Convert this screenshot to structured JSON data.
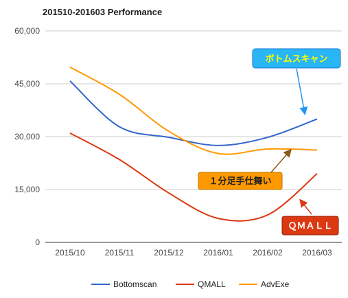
{
  "chart_data": {
    "type": "line",
    "title": "201510-201603 Performance",
    "categories": [
      "2015/10",
      "2015/11",
      "2015/12",
      "2016/01",
      "2016/02",
      "2016/03"
    ],
    "ylim": [
      0,
      60000
    ],
    "yticks": [
      0,
      15000,
      30000,
      45000,
      60000
    ],
    "ytick_labels": [
      "0",
      "15,000",
      "30,000",
      "45,000",
      "60,000"
    ],
    "xlabel": "",
    "ylabel": "",
    "grid": true,
    "legend_position": "bottom",
    "series": [
      {
        "name": "Bottomscan",
        "color": "#3366cc",
        "values": [
          45800,
          32800,
          29800,
          27500,
          29800,
          35000
        ]
      },
      {
        "name": "QMALL",
        "color": "#dc3912",
        "values": [
          31000,
          23500,
          14000,
          6800,
          7800,
          19500
        ]
      },
      {
        "name": "AdvExe",
        "color": "#ff9900",
        "values": [
          49700,
          42000,
          31500,
          25200,
          26500,
          26200
        ]
      }
    ],
    "annotations": [
      {
        "text": "ボトムスキャン",
        "series": "Bottomscan",
        "fill": "#29b6f6",
        "text_color": "#ffff00",
        "arrow_color": "#2196f3"
      },
      {
        "text": "１分足手仕舞い",
        "series": "AdvExe",
        "fill": "#ff9900",
        "text_color": "#222222",
        "arrow_color": "#8b5a16"
      },
      {
        "text": "ＱＭＡＬＬ",
        "series": "QMALL",
        "fill": "#dc3912",
        "text_color": "#ffffff",
        "arrow_color": "#dc3912"
      }
    ]
  }
}
